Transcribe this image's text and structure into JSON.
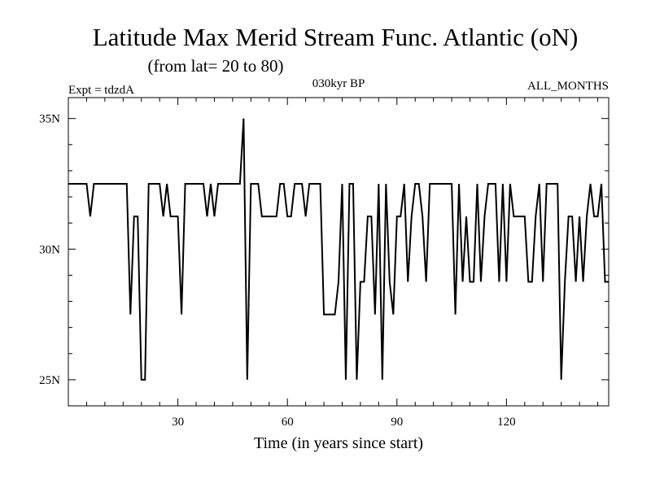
{
  "chart_data": {
    "type": "line",
    "title": "Latitude Max Merid Stream Func. Atlantic (oN)",
    "subtitle": "(from lat= 20 to 80)",
    "experiment_label": "Expt = tdzdA",
    "period_label": "030kyr BP",
    "months_label": "ALL_MONTHS",
    "xlabel": "Time (in years since start)",
    "ylabel": "",
    "xlim": [
      0,
      148
    ],
    "ylim": [
      24,
      35.8
    ],
    "x_ticks": [
      30,
      60,
      90,
      120
    ],
    "x_tick_labels": [
      "30",
      "60",
      "90",
      "120"
    ],
    "y_ticks": [
      25,
      30,
      35
    ],
    "y_tick_labels": [
      "25N",
      "30N",
      "35N"
    ],
    "grid": false,
    "legend": "none",
    "series": [
      {
        "name": "Latitude Max Merid Stream Func. Atlantic",
        "x": [
          0,
          1,
          2,
          3,
          4,
          5,
          6,
          7,
          8,
          9,
          10,
          11,
          12,
          13,
          14,
          15,
          16,
          17,
          18,
          19,
          20,
          21,
          22,
          23,
          24,
          25,
          26,
          27,
          28,
          29,
          30,
          31,
          32,
          33,
          34,
          35,
          36,
          37,
          38,
          39,
          40,
          41,
          42,
          43,
          44,
          45,
          46,
          47,
          48,
          49,
          50,
          51,
          52,
          53,
          54,
          55,
          56,
          57,
          58,
          59,
          60,
          61,
          62,
          63,
          64,
          65,
          66,
          67,
          68,
          69,
          70,
          71,
          72,
          73,
          74,
          75,
          76,
          77,
          78,
          79,
          80,
          81,
          82,
          83,
          84,
          85,
          86,
          87,
          88,
          89,
          90,
          91,
          92,
          93,
          94,
          95,
          96,
          97,
          98,
          99,
          100,
          101,
          102,
          103,
          104,
          105,
          106,
          107,
          108,
          109,
          110,
          111,
          112,
          113,
          114,
          115,
          116,
          117,
          118,
          119,
          120,
          121,
          122,
          123,
          124,
          125,
          126,
          127,
          128,
          129,
          130,
          131,
          132,
          133,
          134,
          135,
          136,
          137,
          138,
          139,
          140,
          141,
          142,
          143,
          144,
          145,
          146,
          147,
          148
        ],
        "values": [
          32.5,
          32.5,
          32.5,
          32.5,
          32.5,
          32.5,
          31.25,
          32.5,
          32.5,
          32.5,
          32.5,
          32.5,
          32.5,
          32.5,
          32.5,
          32.5,
          32.5,
          27.5,
          31.25,
          31.25,
          25.0,
          25.0,
          32.5,
          32.5,
          32.5,
          32.5,
          31.25,
          32.5,
          31.25,
          31.25,
          31.25,
          27.5,
          32.5,
          32.5,
          32.5,
          32.5,
          32.5,
          32.5,
          31.25,
          32.5,
          31.25,
          32.5,
          32.5,
          32.5,
          32.5,
          32.5,
          32.5,
          32.5,
          35.0,
          25.0,
          32.5,
          32.5,
          32.5,
          31.25,
          31.25,
          31.25,
          31.25,
          31.25,
          32.5,
          32.5,
          31.25,
          31.25,
          32.5,
          32.5,
          32.5,
          31.25,
          32.5,
          32.5,
          32.5,
          32.5,
          27.5,
          27.5,
          27.5,
          27.5,
          28.75,
          32.5,
          25.0,
          32.5,
          32.5,
          25.0,
          28.75,
          28.75,
          31.25,
          31.25,
          27.5,
          32.5,
          25.0,
          32.5,
          28.75,
          27.5,
          31.25,
          31.25,
          32.5,
          28.75,
          31.25,
          32.5,
          32.5,
          31.25,
          28.75,
          32.5,
          32.5,
          32.5,
          32.5,
          32.5,
          32.5,
          32.5,
          27.5,
          32.5,
          28.75,
          31.25,
          28.75,
          28.75,
          32.5,
          28.75,
          31.25,
          32.5,
          32.5,
          32.5,
          28.75,
          32.5,
          28.75,
          32.5,
          31.25,
          31.25,
          31.25,
          31.25,
          28.75,
          28.75,
          31.25,
          32.5,
          28.75,
          32.5,
          32.5,
          32.5,
          32.5,
          25.0,
          28.75,
          31.25,
          31.25,
          28.75,
          31.25,
          28.75,
          31.25,
          32.5,
          31.25,
          31.25,
          32.5,
          28.75,
          28.75
        ]
      }
    ]
  }
}
